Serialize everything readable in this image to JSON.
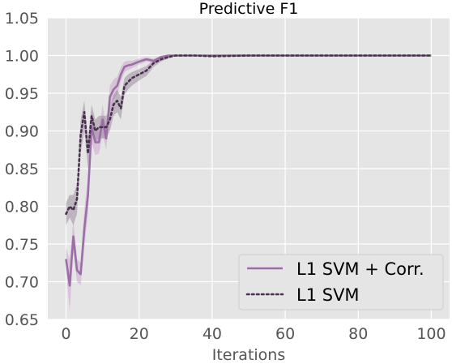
{
  "chart_data": {
    "type": "line",
    "title": "Predictive F1",
    "xlabel": "Iterations",
    "ylabel": "",
    "xlim": [
      -5,
      105
    ],
    "ylim": [
      0.65,
      1.05
    ],
    "xticks": [
      0,
      20,
      40,
      60,
      80,
      100
    ],
    "yticks": [
      0.65,
      0.7,
      0.75,
      0.8,
      0.85,
      0.9,
      0.95,
      1.0,
      1.05
    ],
    "grid": true,
    "legend_position": "lower-right",
    "series": [
      {
        "name": "L1 SVM + Corr.",
        "style": "solid",
        "color": "#9b6fa6",
        "band_color": "#c79bc8",
        "x": [
          0,
          1,
          2,
          3,
          4,
          5,
          6,
          7,
          8,
          9,
          10,
          11,
          12,
          13,
          14,
          15,
          16,
          17,
          18,
          20,
          22,
          24,
          26,
          28,
          30,
          35,
          40,
          50,
          60,
          70,
          80,
          90,
          100
        ],
        "y": [
          0.73,
          0.695,
          0.76,
          0.715,
          0.71,
          0.77,
          0.815,
          0.905,
          0.885,
          0.885,
          0.915,
          0.89,
          0.945,
          0.955,
          0.96,
          0.975,
          0.985,
          0.987,
          0.988,
          0.992,
          0.995,
          0.993,
          0.998,
          1.0,
          1.0,
          1.0,
          1.0,
          1.0,
          1.0,
          1.0,
          1.0,
          1.0,
          1.0
        ],
        "lower": [
          0.715,
          0.66,
          0.74,
          0.7,
          0.695,
          0.745,
          0.79,
          0.885,
          0.868,
          0.87,
          0.895,
          0.875,
          0.93,
          0.942,
          0.948,
          0.965,
          0.978,
          0.981,
          0.983,
          0.988,
          0.992,
          0.99,
          0.996,
          1.0,
          1.0,
          1.0,
          1.0,
          1.0,
          1.0,
          1.0,
          1.0,
          1.0,
          1.0
        ],
        "upper": [
          0.745,
          0.73,
          0.78,
          0.73,
          0.725,
          0.795,
          0.84,
          0.925,
          0.902,
          0.9,
          0.935,
          0.905,
          0.96,
          0.968,
          0.972,
          0.985,
          0.992,
          0.993,
          0.993,
          0.996,
          0.998,
          0.996,
          1.0,
          1.0,
          1.0,
          1.0,
          1.0,
          1.0,
          1.0,
          1.0,
          1.0,
          1.0,
          1.0
        ]
      },
      {
        "name": "L1 SVM",
        "style": "dotted",
        "color": "#4a3150",
        "band_color": "#8b7a8e",
        "x": [
          0,
          1,
          2,
          3,
          4,
          5,
          6,
          7,
          8,
          9,
          10,
          11,
          12,
          13,
          14,
          15,
          16,
          17,
          18,
          20,
          22,
          24,
          26,
          28,
          30,
          35,
          40,
          50,
          60,
          70,
          80,
          90,
          100
        ],
        "y": [
          0.79,
          0.8,
          0.795,
          0.81,
          0.895,
          0.925,
          0.87,
          0.92,
          0.9,
          0.905,
          0.905,
          0.905,
          0.915,
          0.935,
          0.94,
          0.93,
          0.96,
          0.965,
          0.97,
          0.975,
          0.98,
          0.99,
          0.995,
          0.998,
          1.0,
          1.0,
          0.999,
          1.0,
          1.0,
          1.0,
          1.0,
          1.0,
          1.0
        ],
        "lower": [
          0.775,
          0.785,
          0.775,
          0.79,
          0.87,
          0.9,
          0.85,
          0.905,
          0.885,
          0.89,
          0.89,
          0.89,
          0.9,
          0.92,
          0.925,
          0.915,
          0.948,
          0.955,
          0.96,
          0.967,
          0.973,
          0.985,
          0.992,
          0.996,
          1.0,
          1.0,
          0.998,
          1.0,
          1.0,
          1.0,
          1.0,
          1.0,
          1.0
        ],
        "upper": [
          0.805,
          0.815,
          0.815,
          0.83,
          0.915,
          0.94,
          0.89,
          0.935,
          0.915,
          0.92,
          0.92,
          0.92,
          0.93,
          0.948,
          0.955,
          0.945,
          0.97,
          0.975,
          0.978,
          0.982,
          0.986,
          0.994,
          0.998,
          1.0,
          1.0,
          1.0,
          1.0,
          1.0,
          1.0,
          1.0,
          1.0,
          1.0,
          1.0
        ]
      }
    ]
  }
}
